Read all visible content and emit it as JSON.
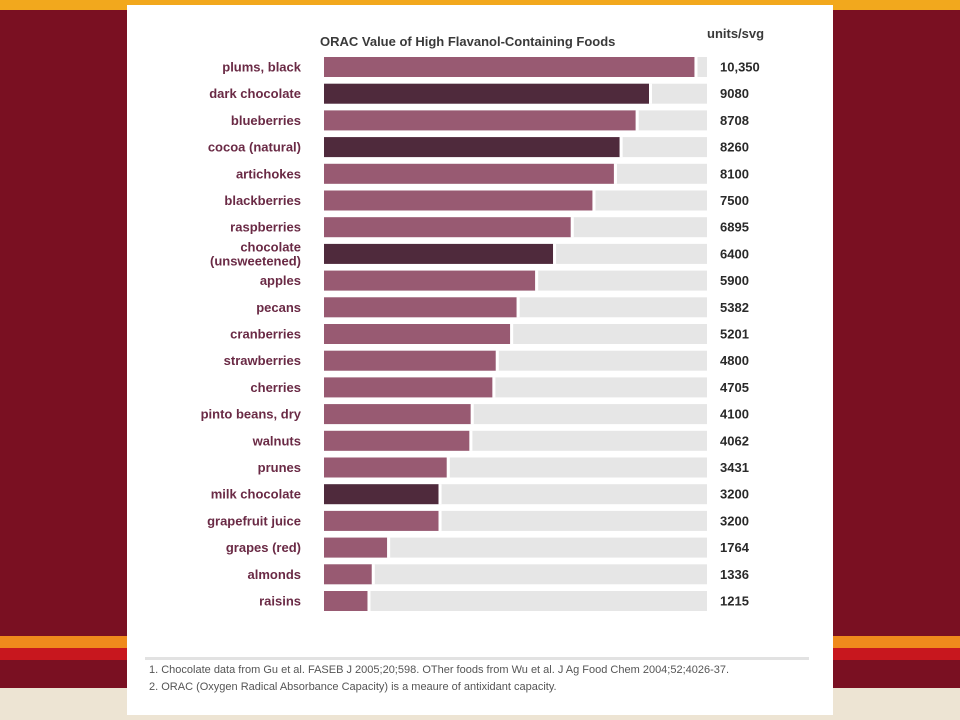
{
  "colors": {
    "background": "#7a1022",
    "accent_orange": "#f2a81d",
    "bar_normal": "#985a72",
    "bar_chocolate": "#4f2a3c",
    "bar_track": "#e6e6e6",
    "label_text": "#6a2a45"
  },
  "chart_data": {
    "type": "bar",
    "orientation": "horizontal",
    "title": "ORAC Value of High Flavanol-Containing Foods",
    "value_header": "units/svg",
    "xlim": [
      0,
      10700
    ],
    "grid": false,
    "categories": [
      "plums, black",
      "dark chocolate",
      "blueberries",
      "cocoa (natural)",
      "artichokes",
      "blackberries",
      "raspberries",
      "chocolate (unsweetened)",
      "apples",
      "pecans",
      "cranberries",
      "strawberries",
      "cherries",
      "pinto beans, dry",
      "walnuts",
      "prunes",
      "milk chocolate",
      "grapefruit juice",
      "grapes (red)",
      "almonds",
      "raisins"
    ],
    "labels": [
      [
        "plums, black"
      ],
      [
        "dark chocolate"
      ],
      [
        "blueberries"
      ],
      [
        "cocoa (natural)"
      ],
      [
        "artichokes"
      ],
      [
        "blackberries"
      ],
      [
        "raspberries"
      ],
      [
        "chocolate",
        "(unsweetened)"
      ],
      [
        "apples"
      ],
      [
        "pecans"
      ],
      [
        "cranberries"
      ],
      [
        "strawberries"
      ],
      [
        "cherries"
      ],
      [
        "pinto beans, dry"
      ],
      [
        "walnuts"
      ],
      [
        "prunes"
      ],
      [
        "milk chocolate"
      ],
      [
        "grapefruit juice"
      ],
      [
        "grapes (red)"
      ],
      [
        "almonds"
      ],
      [
        "raisins"
      ]
    ],
    "values": [
      10350,
      9080,
      8708,
      8260,
      8100,
      7500,
      6895,
      6400,
      5900,
      5382,
      5201,
      4800,
      4705,
      4100,
      4062,
      3431,
      3200,
      3200,
      1764,
      1336,
      1215
    ],
    "value_labels": [
      "10,350",
      "9080",
      "8708",
      "8260",
      "8100",
      "7500",
      "6895",
      "6400",
      "5900",
      "5382",
      "5201",
      "4800",
      "4705",
      "4100",
      "4062",
      "3431",
      "3200",
      "3200",
      "1764",
      "1336",
      "1215"
    ],
    "highlight": [
      false,
      true,
      false,
      true,
      false,
      false,
      false,
      true,
      false,
      false,
      false,
      false,
      false,
      false,
      false,
      false,
      true,
      false,
      false,
      false,
      false
    ]
  },
  "footnotes": [
    "1. Chocolate data from Gu et al. FASEB J 2005;20;598. OTher foods from Wu et al. J Ag Food Chem 2004;52;4026-37.",
    "2. ORAC (Oxygen Radical Absorbance Capacity) is a meaure of antixidant capacity."
  ]
}
